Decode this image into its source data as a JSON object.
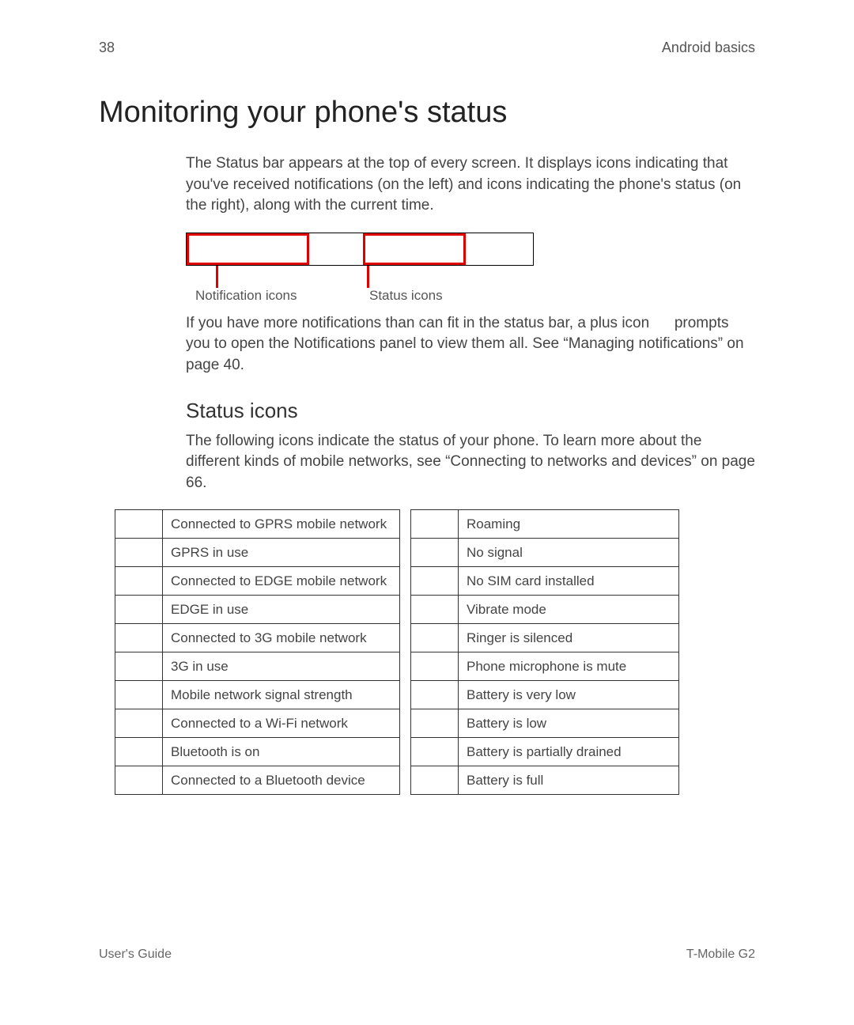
{
  "header": {
    "page_number": "38",
    "section": "Android basics"
  },
  "title": "Monitoring your phone's status",
  "intro_para": "The Status bar appears at the top of every screen. It displays icons indicating that you've received notifications (on the left) and icons indicating the phone's status (on the right), along with the current time.",
  "diagram": {
    "label_left": "Notification icons",
    "label_right": "Status icons",
    "highlight_color": "#e00000"
  },
  "para2": "If you have more notifications than can fit in the status bar, a plus icon      prompts you to open the Notifications panel to view them all. See “Managing notifications” on page 40.",
  "subheading": "Status icons",
  "para3": "The following icons indicate the status of your phone. To learn more about the different kinds of mobile networks, see “Connecting to networks and devices” on page 66.",
  "table": {
    "rows": [
      {
        "left": "Connected to GPRS mobile network",
        "right": "Roaming"
      },
      {
        "left": "GPRS in use",
        "right": "No signal"
      },
      {
        "left": "Connected to EDGE mobile network",
        "right": "No SIM card installed"
      },
      {
        "left": "EDGE in use",
        "right": "Vibrate mode"
      },
      {
        "left": "Connected to 3G mobile network",
        "right": "Ringer is silenced"
      },
      {
        "left": "3G in use",
        "right": "Phone microphone is mute"
      },
      {
        "left": "Mobile network signal strength",
        "right": "Battery is very low"
      },
      {
        "left": "Connected to a Wi-Fi network",
        "right": "Battery is low"
      },
      {
        "left": "Bluetooth is on",
        "right": "Battery is partially drained"
      },
      {
        "left": "Connected to a Bluetooth device",
        "right": "Battery is full"
      }
    ]
  },
  "footer": {
    "left": "User's Guide",
    "right": "T-Mobile G2"
  }
}
